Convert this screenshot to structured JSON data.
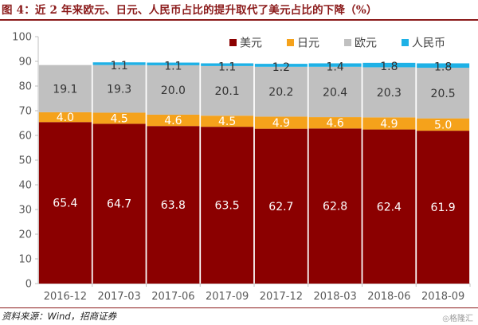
{
  "chart_data": {
    "type": "bar",
    "stacked": true,
    "title": "图 4：近 2 年来欧元、日元、人民币占比的提升取代了美元占比的下降（%）",
    "source": "资料来源：Wind，招商证券",
    "watermark": "◎格隆汇",
    "categories": [
      "2016-12",
      "2017-03",
      "2017-06",
      "2017-09",
      "2017-12",
      "2018-03",
      "2018-06",
      "2018-09"
    ],
    "series": [
      {
        "name": "美元",
        "color": "#8b0000",
        "label_color": "#ffffff",
        "values": [
          65.4,
          64.7,
          63.8,
          63.5,
          62.7,
          62.8,
          62.4,
          61.9
        ]
      },
      {
        "name": "日元",
        "color": "#f5a21b",
        "label_color": "#ffffff",
        "values": [
          4.0,
          4.5,
          4.6,
          4.5,
          4.9,
          4.6,
          4.9,
          5.0
        ]
      },
      {
        "name": "欧元",
        "color": "#c0c0c0",
        "label_color": "#333333",
        "values": [
          19.1,
          19.3,
          20.0,
          20.1,
          20.2,
          20.4,
          20.3,
          20.5
        ]
      },
      {
        "name": "人民币",
        "color": "#1eb1e6",
        "label_color": "#333333",
        "values": [
          null,
          1.1,
          1.1,
          1.1,
          1.2,
          1.4,
          1.8,
          1.8
        ]
      }
    ],
    "ylim": [
      0,
      100
    ],
    "yticks": [
      0,
      10,
      20,
      30,
      40,
      50,
      60,
      70,
      80,
      90,
      100
    ],
    "xlabel": "",
    "ylabel": "",
    "grid": false,
    "legend_position": "top-right"
  }
}
